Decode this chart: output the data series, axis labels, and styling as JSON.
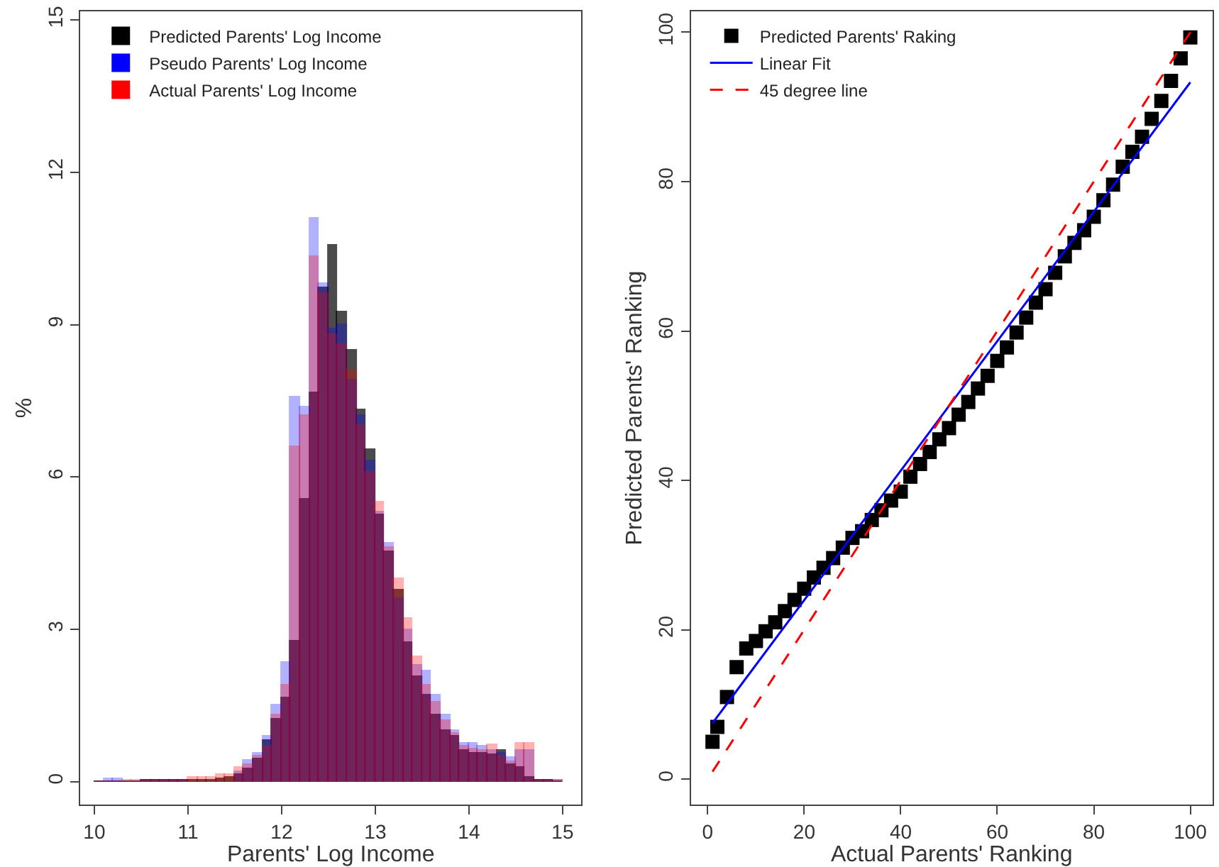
{
  "chart_data": [
    {
      "type": "histogram",
      "xlabel": "Parents' Log Income",
      "ylabel": "%",
      "xlim": [
        9.85,
        15.2
      ],
      "xticks": [
        10,
        11,
        12,
        13,
        14,
        15
      ],
      "ylim": [
        -0.45,
        15.17
      ],
      "yticks": [
        0,
        3,
        6,
        9,
        12,
        15
      ],
      "grid": false,
      "legend": "top left",
      "bins": [
        10.0,
        10.1,
        10.2,
        10.3,
        10.4,
        10.5,
        10.6,
        10.7,
        10.8,
        10.9,
        11.0,
        11.1,
        11.2,
        11.3,
        11.4,
        11.5,
        11.6,
        11.7,
        11.8,
        11.9,
        12.0,
        12.1,
        12.2,
        12.3,
        12.4,
        12.5,
        12.6,
        12.7,
        12.8,
        12.9,
        13.0,
        13.1,
        13.2,
        13.3,
        13.4,
        13.5,
        13.6,
        13.7,
        13.8,
        13.9,
        14.0,
        14.1,
        14.2,
        14.3,
        14.4,
        14.5,
        14.6,
        14.7,
        14.8,
        14.9,
        15.0
      ],
      "series": [
        {
          "name": "Predicted Parents' Log Income",
          "color": "#000000",
          "values": [
            0,
            0,
            0,
            0,
            0,
            0.03,
            0.03,
            0.03,
            0.03,
            0.03,
            0.02,
            0.02,
            0.03,
            0.05,
            0.07,
            0.15,
            0.25,
            0.45,
            0.8,
            1.22,
            1.64,
            2.77,
            5.55,
            7.66,
            9.73,
            10.57,
            9.26,
            8.5,
            7.33,
            6.53,
            5.26,
            4.51,
            3.76,
            2.73,
            2.07,
            1.69,
            1.32,
            1.0,
            0.9,
            0.61,
            0.56,
            0.56,
            0.52,
            0.6,
            0.33,
            0.28,
            0.09,
            0.03,
            0.02,
            0
          ]
        },
        {
          "name": "Pseudo Parents' Log Income",
          "color": "#0000ff",
          "values": [
            0,
            0.05,
            0.05,
            0,
            0,
            0.03,
            0.03,
            0.03,
            0.03,
            0.03,
            null,
            null,
            null,
            null,
            null,
            0.2,
            0.42,
            0.55,
            0.9,
            1.5,
            2.35,
            7.56,
            7.37,
            11.1,
            9.8,
            8.9,
            9.0,
            7.9,
            7.2,
            6.3,
            5.3,
            4.7,
            3.6,
            3.0,
            2.3,
            2.18,
            1.71,
            1.32,
            1.0,
            0.75,
            0.75,
            0.7,
            0.6,
            0.56,
            0.47,
            0.6,
            0.6,
            0.03,
            0.03,
            0.03
          ]
        },
        {
          "name": "Actual Parents' Log Income",
          "color": "#ff0000",
          "values": [
            0,
            0,
            0,
            0.03,
            0.03,
            0.03,
            0.03,
            0.03,
            0.03,
            0.03,
            0.09,
            0.09,
            0.09,
            0.13,
            0.15,
            0.28,
            0.34,
            0.5,
            0.7,
            1.3,
            1.9,
            6.58,
            7.2,
            10.35,
            9.6,
            8.8,
            8.6,
            8.1,
            7.0,
            6.1,
            5.5,
            4.6,
            4.0,
            3.2,
            2.45,
            1.9,
            1.55,
            1.2,
            0.95,
            0.7,
            0.65,
            0.62,
            0.72,
            0.5,
            0.38,
            0.75,
            0.75,
            0.03,
            0.03,
            0.03
          ]
        }
      ]
    },
    {
      "type": "scatter",
      "xlabel": "Actual Parents' Ranking",
      "ylabel": "Predicted Parents' Ranking",
      "xlim": [
        -3.5,
        104.6
      ],
      "xticks": [
        0,
        20,
        40,
        60,
        80,
        100
      ],
      "ylim": [
        -3.4,
        102.8
      ],
      "yticks": [
        0,
        20,
        40,
        60,
        80,
        100
      ],
      "grid": false,
      "legend": "top left",
      "series": [
        {
          "type": "scatter",
          "name": "Predicted Parents' Raking",
          "color": "#000000",
          "marker": "square",
          "x": [
            1,
            2,
            4,
            6,
            8,
            10,
            12,
            14,
            16,
            18,
            20,
            22,
            24,
            26,
            28,
            30,
            32,
            34,
            36,
            38,
            40,
            42,
            44,
            46,
            48,
            50,
            52,
            54,
            56,
            58,
            60,
            62,
            64,
            66,
            68,
            70,
            72,
            74,
            76,
            78,
            80,
            82,
            84,
            86,
            88,
            90,
            92,
            94,
            96,
            98,
            100
          ],
          "values": [
            5,
            7,
            11,
            15,
            17.5,
            18.5,
            19.8,
            21,
            22.5,
            24,
            25.5,
            27,
            28.3,
            29.6,
            31,
            32.3,
            33.2,
            34.7,
            36,
            37.3,
            38.5,
            40.5,
            42.2,
            43.8,
            45.5,
            47,
            48.8,
            50.5,
            52.3,
            54,
            56,
            57.8,
            59.8,
            61.8,
            63.8,
            65.6,
            67.8,
            70,
            71.8,
            73.5,
            75.3,
            77.5,
            79.6,
            82,
            84,
            86,
            88.4,
            90.8,
            93.5,
            96.5,
            99.3
          ]
        },
        {
          "type": "line",
          "name": "Linear Fit",
          "color": "#0000ff",
          "line_style": "solid",
          "x": [
            1,
            100
          ],
          "values": [
            7.5,
            93.3
          ]
        },
        {
          "type": "line",
          "name": "45 degree line",
          "color": "#ff0000",
          "line_style": "dashed",
          "x": [
            1,
            100
          ],
          "values": [
            1,
            100
          ]
        }
      ]
    }
  ]
}
